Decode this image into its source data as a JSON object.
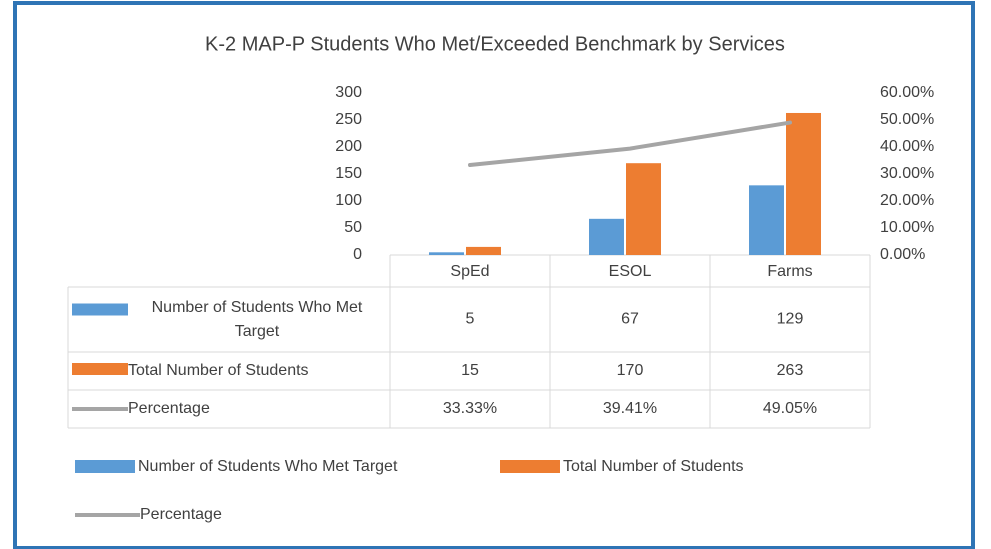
{
  "chart_data": {
    "type": "bar",
    "title": "K-2 MAP-P Students Who Met/Exceeded Benchmark by Services",
    "categories": [
      "SpEd",
      "ESOL",
      "Farms"
    ],
    "series": [
      {
        "name": "Number of Students Who Met Target",
        "color": "#5b9bd5",
        "values": [
          5,
          67,
          129
        ]
      },
      {
        "name": "Total Number of Students",
        "color": "#ed7d31",
        "values": [
          15,
          170,
          263
        ]
      },
      {
        "name": "Percentage",
        "color": "#a5a5a5",
        "type": "line",
        "axis": "y2",
        "values": [
          33.33,
          39.41,
          49.05
        ],
        "value_labels": [
          "33.33%",
          "39.41%",
          "49.05%"
        ]
      }
    ],
    "ylim": [
      0,
      300
    ],
    "yticks": [
      0,
      50,
      100,
      150,
      200,
      250,
      300
    ],
    "y2lim": [
      0,
      60
    ],
    "y2ticks": [
      {
        "value": 0,
        "label": "0.00%"
      },
      {
        "value": 10,
        "label": "10.00%"
      },
      {
        "value": 20,
        "label": "20.00%"
      },
      {
        "value": 30,
        "label": "30.00%"
      },
      {
        "value": 40,
        "label": "40.00%"
      },
      {
        "value": 50,
        "label": "50.00%"
      },
      {
        "value": 60,
        "label": "60.00%"
      }
    ],
    "grid": false,
    "legend": "bottom"
  }
}
